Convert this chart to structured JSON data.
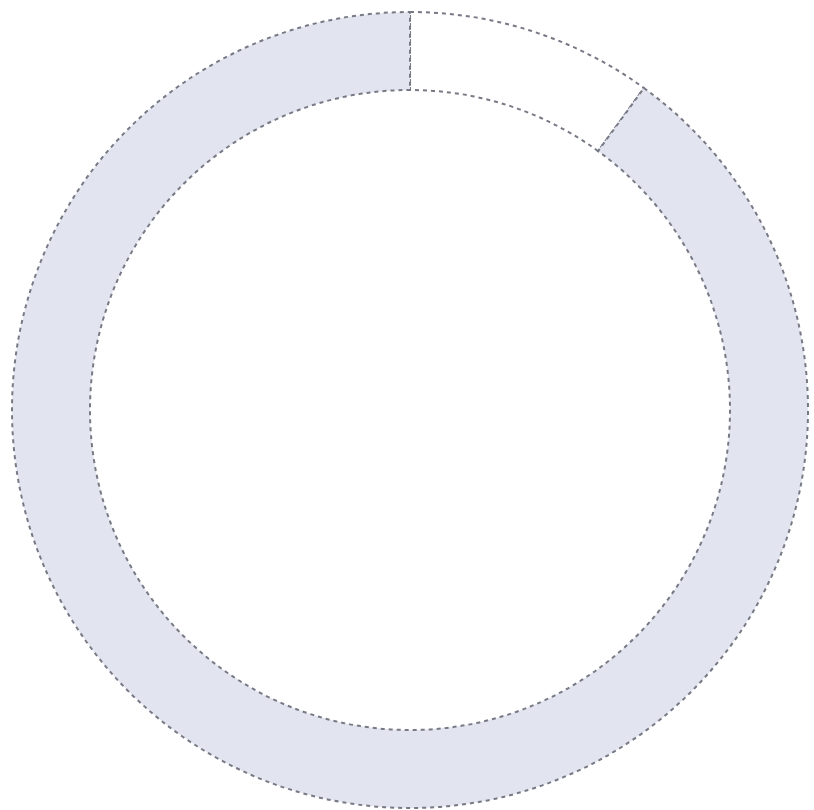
{
  "chart_data": {
    "type": "donut",
    "categories": [
      null,
      null
    ],
    "values": [
      10,
      90
    ],
    "colors": [
      "#ffffff",
      "#e2e4ef"
    ]
  }
}
